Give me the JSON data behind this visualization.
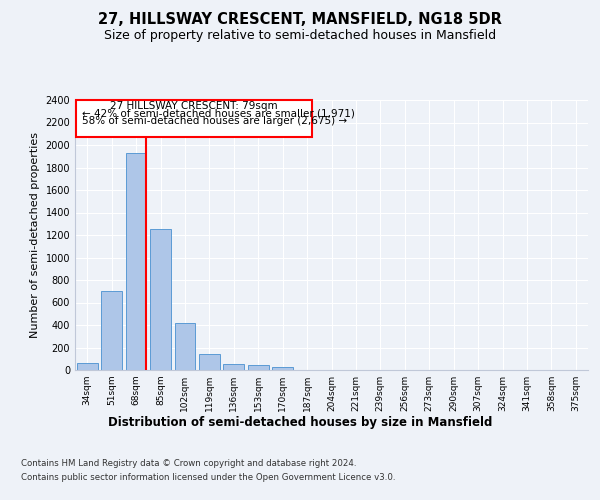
{
  "title1": "27, HILLSWAY CRESCENT, MANSFIELD, NG18 5DR",
  "title2": "Size of property relative to semi-detached houses in Mansfield",
  "xlabel": "Distribution of semi-detached houses by size in Mansfield",
  "ylabel": "Number of semi-detached properties",
  "footer1": "Contains HM Land Registry data © Crown copyright and database right 2024.",
  "footer2": "Contains public sector information licensed under the Open Government Licence v3.0.",
  "categories": [
    "34sqm",
    "51sqm",
    "68sqm",
    "85sqm",
    "102sqm",
    "119sqm",
    "136sqm",
    "153sqm",
    "170sqm",
    "187sqm",
    "204sqm",
    "221sqm",
    "239sqm",
    "256sqm",
    "273sqm",
    "290sqm",
    "307sqm",
    "324sqm",
    "341sqm",
    "358sqm",
    "375sqm"
  ],
  "values": [
    65,
    700,
    1930,
    1250,
    420,
    140,
    55,
    45,
    25,
    0,
    0,
    0,
    0,
    0,
    0,
    0,
    0,
    0,
    0,
    0,
    0
  ],
  "bar_color": "#aec6e8",
  "bar_edge_color": "#5b9bd5",
  "ylim": [
    0,
    2400
  ],
  "yticks": [
    0,
    200,
    400,
    600,
    800,
    1000,
    1200,
    1400,
    1600,
    1800,
    2000,
    2200,
    2400
  ],
  "property_label": "27 HILLSWAY CRESCENT: 79sqm",
  "annotation_line1": "← 42% of semi-detached houses are smaller (1,971)",
  "annotation_line2": "58% of semi-detached houses are larger (2,675) →",
  "vline_bin_index": 2,
  "background_color": "#eef2f8",
  "grid_color": "#ffffff",
  "title1_fontsize": 10.5,
  "title2_fontsize": 9,
  "axis_fontsize": 7,
  "ylabel_fontsize": 8
}
